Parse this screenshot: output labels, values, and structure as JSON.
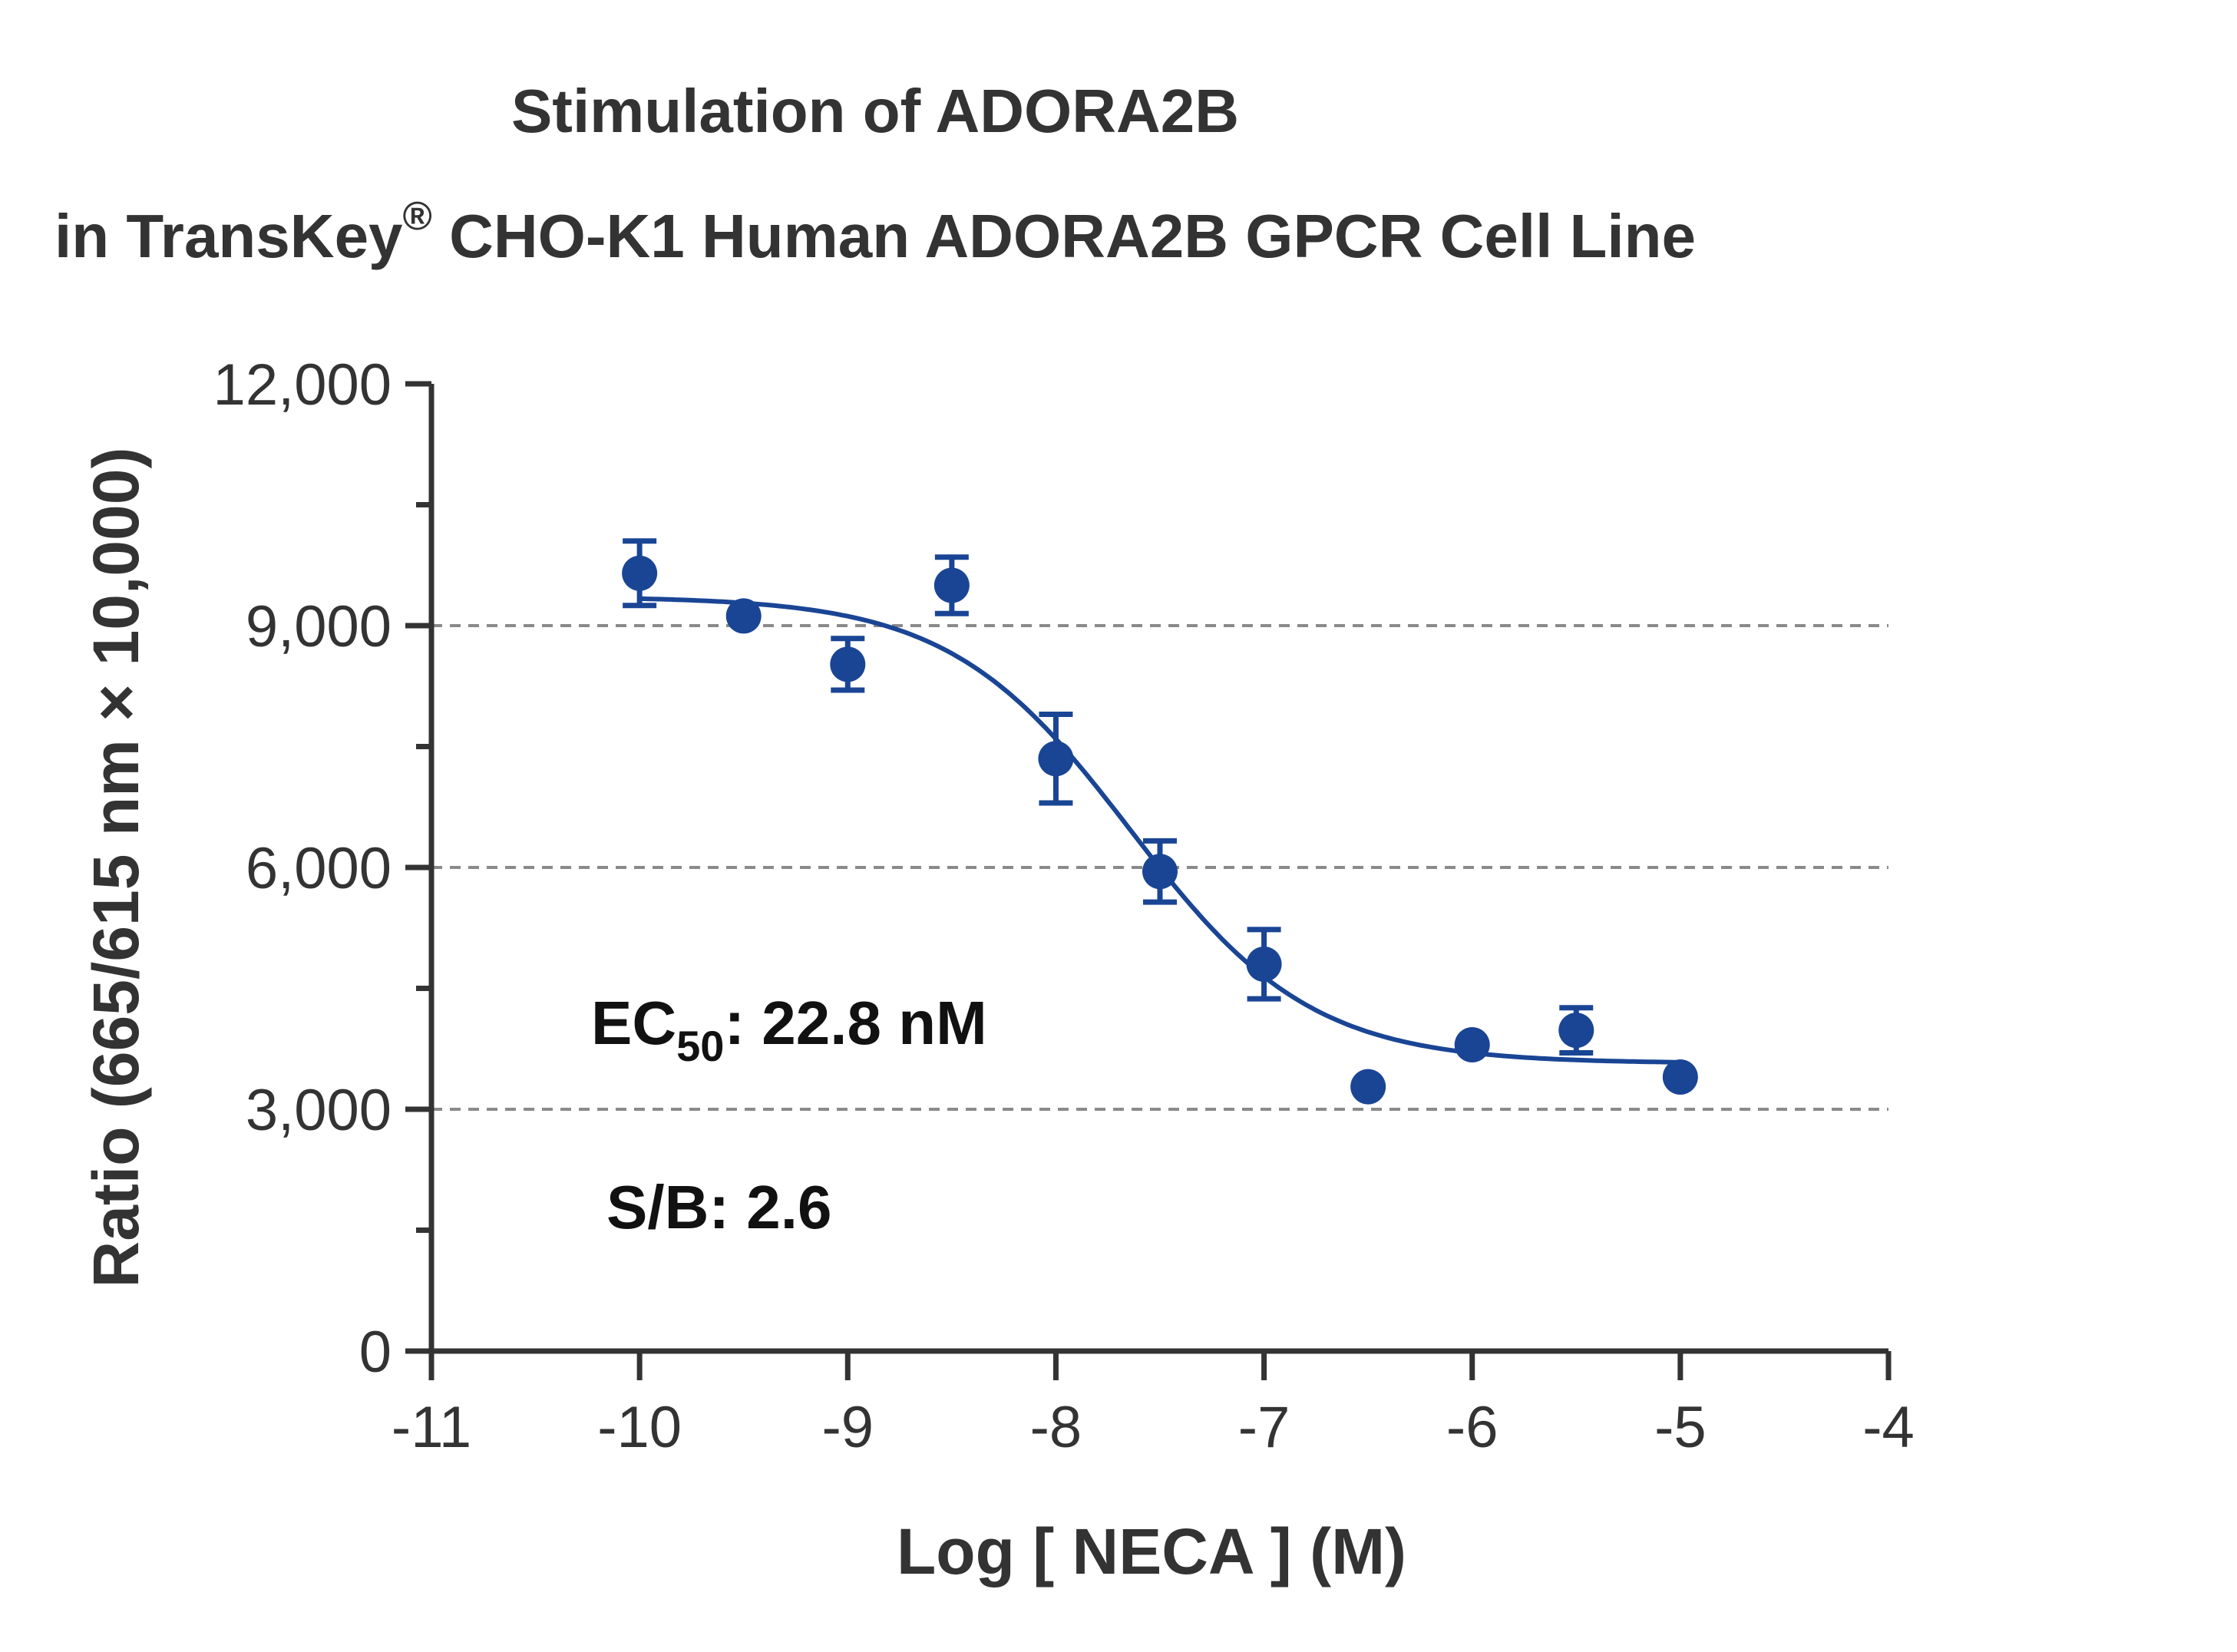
{
  "colors": {
    "series": "#1a4595",
    "axis": "#333333",
    "grid": "#8a8a8a",
    "text": "#333333",
    "annotation": "#111111"
  },
  "chart_data": {
    "type": "scatter",
    "title": "Stimulation of  ADORA2B",
    "subtitle": {
      "prefix": "in TransKey",
      "mark": "®",
      "suffix": " CHO-K1 Human ADORA2B GPCR Cell Line"
    },
    "xlabel": "Log [ NECA ]  (M)",
    "ylabel": "Ratio (665/615 nm × 10,000)",
    "xlim": [
      -11,
      -4
    ],
    "ylim": [
      0,
      12000
    ],
    "x_ticks": [
      -11,
      -10,
      -9,
      -8,
      -7,
      -6,
      -5,
      -4
    ],
    "x_tick_labels": [
      "-11",
      "-10",
      "-9",
      "-8",
      "-7",
      "-6",
      "-5",
      "-4"
    ],
    "y_ticks": [
      0,
      3000,
      6000,
      9000,
      12000
    ],
    "y_tick_labels": [
      "0",
      "3,000",
      "6,000",
      "9,000",
      "12,000"
    ],
    "y_minor_ticks": [
      1500,
      4500,
      7500,
      10500
    ],
    "grid": {
      "horizontal_dashed_at": [
        3000,
        6000,
        9000
      ]
    },
    "series": [
      {
        "points": [
          {
            "x": -10.0,
            "y": 9650,
            "err": 400
          },
          {
            "x": -9.5,
            "y": 9120,
            "err": 0
          },
          {
            "x": -9.0,
            "y": 8520,
            "err": 320
          },
          {
            "x": -8.5,
            "y": 9500,
            "err": 350
          },
          {
            "x": -8.0,
            "y": 7350,
            "err": 550
          },
          {
            "x": -7.5,
            "y": 5950,
            "err": 380
          },
          {
            "x": -7.0,
            "y": 4800,
            "err": 430
          },
          {
            "x": -6.5,
            "y": 3280,
            "err": 0
          },
          {
            "x": -6.0,
            "y": 3800,
            "err": 0
          },
          {
            "x": -5.5,
            "y": 3980,
            "err": 280
          },
          {
            "x": -5.0,
            "y": 3400,
            "err": 0
          }
        ],
        "fit": {
          "model": "four-parameter logistic",
          "top": 9360,
          "bottom": 3570,
          "log_ec50": -7.642,
          "hill": -1.0,
          "x_range": [
            -10,
            -5
          ]
        }
      }
    ],
    "annotations": {
      "ec50": {
        "prefix": "EC",
        "subscript": "50",
        "suffix": ": 22.8 nM"
      },
      "sb": "S/B: 2.6"
    }
  }
}
